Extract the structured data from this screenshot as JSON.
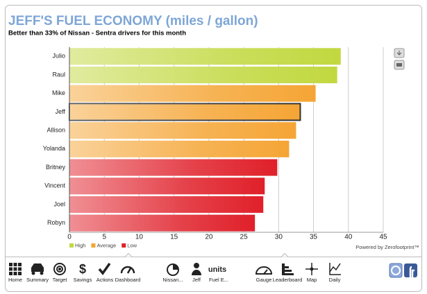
{
  "chart_data": {
    "type": "barh",
    "title": "JEFF'S FUEL ECONOMY (miles / gallon)",
    "subtitle": "Better than 33% of Nissan - Sentra drivers for this month",
    "categories": [
      "Julio",
      "Raul",
      "Mike",
      "Jeff",
      "Allison",
      "Yolanda",
      "Britney",
      "Vincent",
      "Joel",
      "Robyn"
    ],
    "series": [
      {
        "name": "High",
        "color": "#c2d83f",
        "values": [
          38.9,
          38.4,
          null,
          null,
          null,
          null,
          null,
          null,
          null,
          null
        ]
      },
      {
        "name": "Average",
        "color": "#f5a535",
        "values": [
          null,
          null,
          35.3,
          33.1,
          32.5,
          31.5,
          null,
          null,
          null,
          null
        ]
      },
      {
        "name": "Low",
        "color": "#e0202a",
        "values": [
          null,
          null,
          null,
          null,
          null,
          null,
          29.8,
          28.0,
          27.8,
          26.6
        ]
      }
    ],
    "highlight": 3,
    "xlim": [
      0,
      45
    ],
    "xticks": [
      0,
      5,
      10,
      15,
      20,
      25,
      30,
      35,
      40,
      45
    ],
    "grid": true,
    "credit": "Powered by Zerofootprint™"
  },
  "toolbar": {
    "items": [
      "Home",
      "Summary",
      "Target",
      "Savings",
      "Actions",
      "Dashboard",
      "Nissan...",
      "Jeff",
      "Fuel E...",
      "Gauge",
      "Leaderboard",
      "Map",
      "Daily"
    ],
    "units_icon": "units"
  }
}
